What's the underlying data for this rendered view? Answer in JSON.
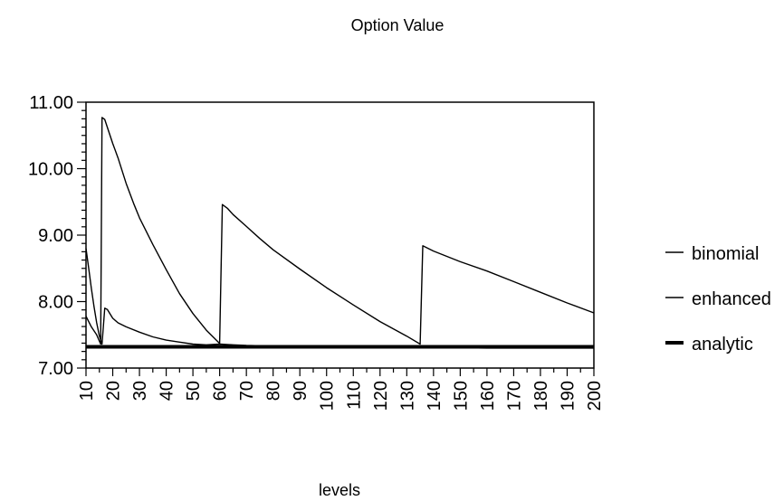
{
  "chart_data": {
    "type": "line",
    "title": "Option Value",
    "xlabel": "levels",
    "ylabel": "",
    "xlim": [
      10,
      200
    ],
    "ylim": [
      7.0,
      11.0
    ],
    "x_ticks": [
      10,
      20,
      30,
      40,
      50,
      60,
      70,
      80,
      90,
      100,
      110,
      120,
      130,
      140,
      150,
      160,
      170,
      180,
      190,
      200
    ],
    "y_ticks": [
      "7.00",
      "8.00",
      "9.00",
      "10.00",
      "11.00"
    ],
    "y_tick_values": [
      7,
      8,
      9,
      10,
      11
    ],
    "legend_position": "right",
    "grid": false,
    "series": [
      {
        "name": "binomial",
        "color": "#000000",
        "points": [
          [
            10,
            7.78
          ],
          [
            12,
            7.62
          ],
          [
            14,
            7.5
          ],
          [
            15.5,
            7.36
          ],
          [
            16,
            10.77
          ],
          [
            17,
            10.74
          ],
          [
            18,
            10.62
          ],
          [
            20,
            10.38
          ],
          [
            22,
            10.16
          ],
          [
            25,
            9.78
          ],
          [
            28,
            9.46
          ],
          [
            30,
            9.26
          ],
          [
            35,
            8.86
          ],
          [
            40,
            8.48
          ],
          [
            45,
            8.12
          ],
          [
            50,
            7.82
          ],
          [
            55,
            7.57
          ],
          [
            60,
            7.37
          ],
          [
            61,
            9.46
          ],
          [
            63,
            9.4
          ],
          [
            65,
            9.31
          ],
          [
            70,
            9.13
          ],
          [
            75,
            8.95
          ],
          [
            80,
            8.78
          ],
          [
            90,
            8.49
          ],
          [
            100,
            8.21
          ],
          [
            110,
            7.95
          ],
          [
            120,
            7.7
          ],
          [
            130,
            7.48
          ],
          [
            135,
            7.36
          ],
          [
            136,
            8.84
          ],
          [
            140,
            8.76
          ],
          [
            150,
            8.6
          ],
          [
            160,
            8.46
          ],
          [
            170,
            8.3
          ],
          [
            180,
            8.14
          ],
          [
            190,
            7.98
          ],
          [
            200,
            7.83
          ]
        ]
      },
      {
        "name": "enhanced",
        "color": "#000000",
        "points": [
          [
            10,
            8.8
          ],
          [
            11,
            8.5
          ],
          [
            12,
            8.2
          ],
          [
            13,
            7.92
          ],
          [
            14,
            7.68
          ],
          [
            15,
            7.48
          ],
          [
            16,
            7.36
          ],
          [
            17,
            7.9
          ],
          [
            18,
            7.88
          ],
          [
            20,
            7.75
          ],
          [
            22,
            7.68
          ],
          [
            25,
            7.62
          ],
          [
            30,
            7.54
          ],
          [
            35,
            7.47
          ],
          [
            40,
            7.42
          ],
          [
            45,
            7.39
          ],
          [
            50,
            7.36
          ],
          [
            55,
            7.35
          ],
          [
            60,
            7.36
          ],
          [
            65,
            7.35
          ],
          [
            70,
            7.34
          ],
          [
            80,
            7.33
          ],
          [
            90,
            7.32
          ],
          [
            100,
            7.32
          ],
          [
            120,
            7.31
          ],
          [
            140,
            7.31
          ],
          [
            160,
            7.3
          ],
          [
            180,
            7.3
          ],
          [
            200,
            7.3
          ]
        ]
      },
      {
        "name": "analytic",
        "color": "#000000",
        "points": [
          [
            10,
            7.32
          ],
          [
            200,
            7.32
          ]
        ]
      }
    ]
  }
}
